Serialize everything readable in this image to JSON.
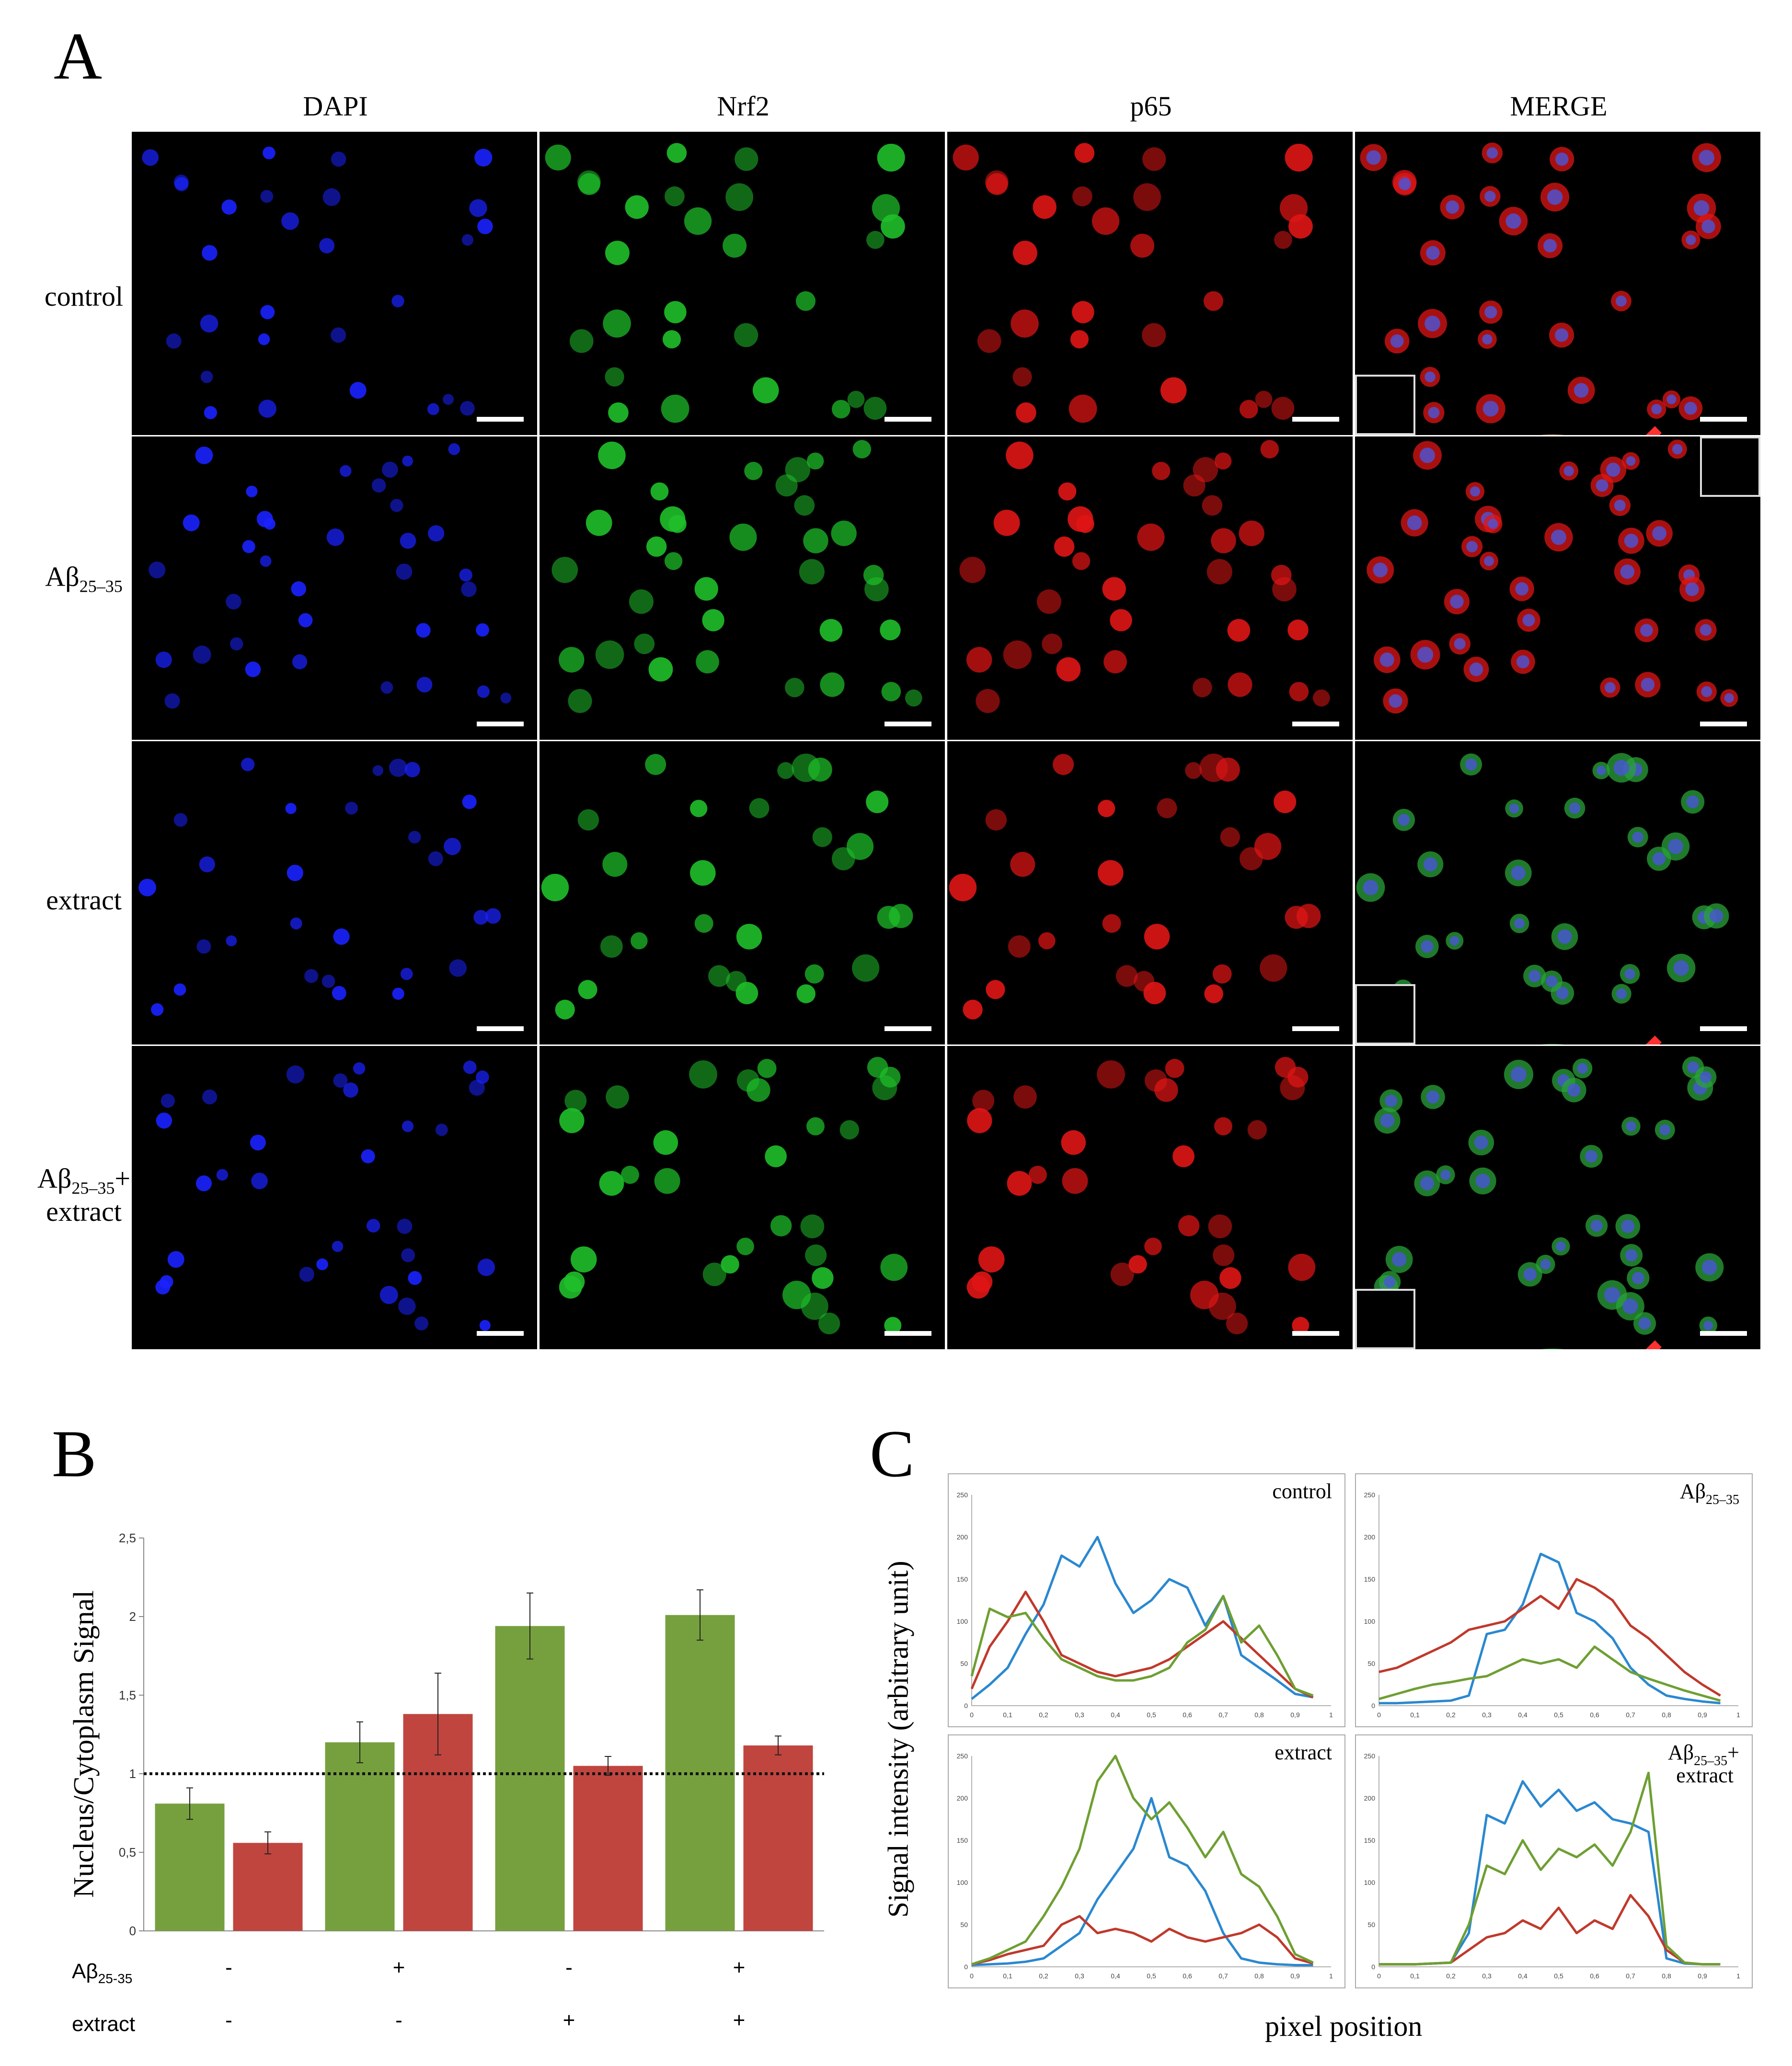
{
  "panelA": {
    "letter": "A",
    "columns": [
      "DAPI",
      "Nrf2",
      "p65",
      "MERGE"
    ],
    "rows": [
      {
        "id": "control",
        "label": "control",
        "sub": "",
        "suffix": "",
        "label2": ""
      },
      {
        "id": "abeta",
        "label": "Aβ",
        "sub": "25–35",
        "suffix": "",
        "label2": ""
      },
      {
        "id": "extract",
        "label": "extract",
        "sub": "",
        "suffix": "",
        "label2": ""
      },
      {
        "id": "abeta-extract",
        "label": "Aβ",
        "sub": "25–35",
        "suffix": "+",
        "label2": "extract"
      }
    ],
    "colors": {
      "DAPI": "#1a22ff",
      "Nrf2": "#1fbf2a",
      "p65": "#e01515",
      "MERGE": "#c8702a"
    }
  },
  "panelB": {
    "letter": "B",
    "ylabel": "Nucleus/Cytoplasm Signal",
    "row1_label": "Aβ",
    "row1_sub": "25-35",
    "row2_label": "extract",
    "abeta_signs": [
      "-",
      "+",
      "-",
      "+"
    ],
    "extract_signs": [
      "-",
      "-",
      "+",
      "+"
    ]
  },
  "panelC": {
    "letter": "C",
    "ylabel": "Signal intensity (arbitrary unit)",
    "xlabel": "pixel position"
  },
  "chart_data": [
    {
      "type": "bar",
      "categories": [
        "-/-",
        "+/-",
        "-/+",
        "+/+"
      ],
      "series": [
        {
          "color": "#76a03e",
          "values": [
            0.81,
            1.2,
            1.94,
            2.01
          ],
          "errors": [
            0.1,
            0.13,
            0.21,
            0.16
          ]
        },
        {
          "color": "#c0453f",
          "values": [
            0.56,
            1.38,
            1.05,
            1.18
          ],
          "errors": [
            0.07,
            0.26,
            0.06,
            0.06
          ]
        }
      ],
      "title": "",
      "xlabel": "",
      "ylabel": "Nucleus/Cytoplasm Signal",
      "ylim": [
        0,
        2.5
      ],
      "yticks": [
        "0",
        "0,5",
        "1",
        "1,5",
        "2",
        "2,5"
      ],
      "reference_line": 1,
      "grid": false
    },
    {
      "type": "line",
      "title": "control",
      "title_sub": "",
      "title_suffix": "",
      "title_line2": "",
      "xlim": [
        0,
        1
      ],
      "ylim": [
        0,
        250
      ],
      "xticks": [
        "0",
        "0,1",
        "0,2",
        "0,3",
        "0,4",
        "0,5",
        "0,6",
        "0,7",
        "0,8",
        "0,9",
        "1"
      ],
      "yticks": [
        "0",
        "50",
        "100",
        "150",
        "200",
        "250"
      ],
      "x": [
        0.0,
        0.05,
        0.1,
        0.15,
        0.2,
        0.25,
        0.3,
        0.35,
        0.4,
        0.45,
        0.5,
        0.55,
        0.6,
        0.65,
        0.7,
        0.75,
        0.8,
        0.85,
        0.9,
        0.95
      ],
      "series": [
        {
          "color": "#2a88d0",
          "values": [
            8,
            25,
            45,
            85,
            120,
            178,
            165,
            200,
            145,
            110,
            125,
            150,
            140,
            95,
            130,
            60,
            45,
            30,
            14,
            10
          ]
        },
        {
          "color": "#c0392b",
          "values": [
            20,
            70,
            100,
            135,
            100,
            60,
            50,
            40,
            35,
            40,
            45,
            55,
            70,
            85,
            100,
            80,
            60,
            40,
            20,
            10
          ]
        },
        {
          "color": "#6e9f32",
          "values": [
            35,
            115,
            105,
            110,
            80,
            55,
            45,
            35,
            30,
            30,
            35,
            45,
            75,
            90,
            130,
            75,
            95,
            60,
            20,
            12
          ]
        }
      ]
    },
    {
      "type": "line",
      "title": "Aβ",
      "title_sub": "25–35",
      "title_suffix": "",
      "title_line2": "",
      "xlim": [
        0,
        1
      ],
      "ylim": [
        0,
        250
      ],
      "xticks": [
        "0",
        "0,1",
        "0,2",
        "0,3",
        "0,4",
        "0,5",
        "0,6",
        "0,7",
        "0,8",
        "0,9",
        "1"
      ],
      "yticks": [
        "0",
        "50",
        "100",
        "150",
        "200",
        "250"
      ],
      "x": [
        0.0,
        0.05,
        0.1,
        0.15,
        0.2,
        0.25,
        0.3,
        0.35,
        0.4,
        0.45,
        0.5,
        0.55,
        0.6,
        0.65,
        0.7,
        0.75,
        0.8,
        0.85,
        0.9,
        0.95
      ],
      "series": [
        {
          "color": "#2a88d0",
          "values": [
            3,
            3,
            4,
            5,
            6,
            12,
            85,
            90,
            120,
            180,
            170,
            110,
            100,
            80,
            45,
            25,
            12,
            8,
            5,
            3
          ]
        },
        {
          "color": "#c0392b",
          "values": [
            40,
            45,
            55,
            65,
            75,
            90,
            95,
            100,
            115,
            130,
            115,
            150,
            140,
            125,
            95,
            80,
            60,
            40,
            25,
            12
          ]
        },
        {
          "color": "#6e9f32",
          "values": [
            8,
            14,
            20,
            25,
            28,
            32,
            35,
            45,
            55,
            50,
            55,
            45,
            70,
            55,
            40,
            32,
            25,
            18,
            12,
            6
          ]
        }
      ]
    },
    {
      "type": "line",
      "title": "extract",
      "title_sub": "",
      "title_suffix": "",
      "title_line2": "",
      "xlim": [
        0,
        1
      ],
      "ylim": [
        0,
        250
      ],
      "xticks": [
        "0",
        "0,1",
        "0,2",
        "0,3",
        "0,4",
        "0,5",
        "0,6",
        "0,7",
        "0,8",
        "0,9",
        "1"
      ],
      "yticks": [
        "0",
        "50",
        "100",
        "150",
        "200",
        "250"
      ],
      "x": [
        0.0,
        0.05,
        0.1,
        0.15,
        0.2,
        0.25,
        0.3,
        0.35,
        0.4,
        0.45,
        0.5,
        0.55,
        0.6,
        0.65,
        0.7,
        0.75,
        0.8,
        0.85,
        0.9,
        0.95
      ],
      "series": [
        {
          "color": "#2a88d0",
          "values": [
            2,
            3,
            4,
            6,
            10,
            25,
            40,
            80,
            110,
            140,
            200,
            130,
            120,
            90,
            40,
            10,
            5,
            3,
            2,
            2
          ]
        },
        {
          "color": "#c0392b",
          "values": [
            3,
            8,
            15,
            20,
            25,
            50,
            60,
            40,
            45,
            40,
            30,
            45,
            35,
            30,
            35,
            40,
            50,
            35,
            10,
            4
          ]
        },
        {
          "color": "#6e9f32",
          "values": [
            3,
            10,
            20,
            30,
            60,
            95,
            140,
            220,
            250,
            200,
            175,
            195,
            165,
            130,
            160,
            110,
            95,
            60,
            15,
            5
          ]
        }
      ]
    },
    {
      "type": "line",
      "title": "Aβ",
      "title_sub": "25–35",
      "title_suffix": "+",
      "title_line2": "extract",
      "xlim": [
        0,
        1
      ],
      "ylim": [
        0,
        250
      ],
      "xticks": [
        "0",
        "0,1",
        "0,2",
        "0,3",
        "0,4",
        "0,5",
        "0,6",
        "0,7",
        "0,8",
        "0,9",
        "1"
      ],
      "yticks": [
        "0",
        "50",
        "100",
        "150",
        "200",
        "250"
      ],
      "x": [
        0.0,
        0.05,
        0.1,
        0.15,
        0.2,
        0.25,
        0.3,
        0.35,
        0.4,
        0.45,
        0.5,
        0.55,
        0.6,
        0.65,
        0.7,
        0.75,
        0.8,
        0.85,
        0.9,
        0.95
      ],
      "series": [
        {
          "color": "#2a88d0",
          "values": [
            3,
            3,
            3,
            4,
            5,
            40,
            180,
            170,
            220,
            190,
            210,
            185,
            195,
            175,
            170,
            160,
            10,
            4,
            3,
            3
          ]
        },
        {
          "color": "#c0392b",
          "values": [
            3,
            3,
            3,
            4,
            5,
            20,
            35,
            40,
            55,
            45,
            70,
            40,
            55,
            45,
            85,
            60,
            20,
            5,
            3,
            3
          ]
        },
        {
          "color": "#6e9f32",
          "values": [
            3,
            3,
            3,
            4,
            5,
            50,
            120,
            110,
            150,
            115,
            140,
            130,
            145,
            120,
            160,
            230,
            25,
            5,
            3,
            3
          ]
        }
      ]
    }
  ]
}
